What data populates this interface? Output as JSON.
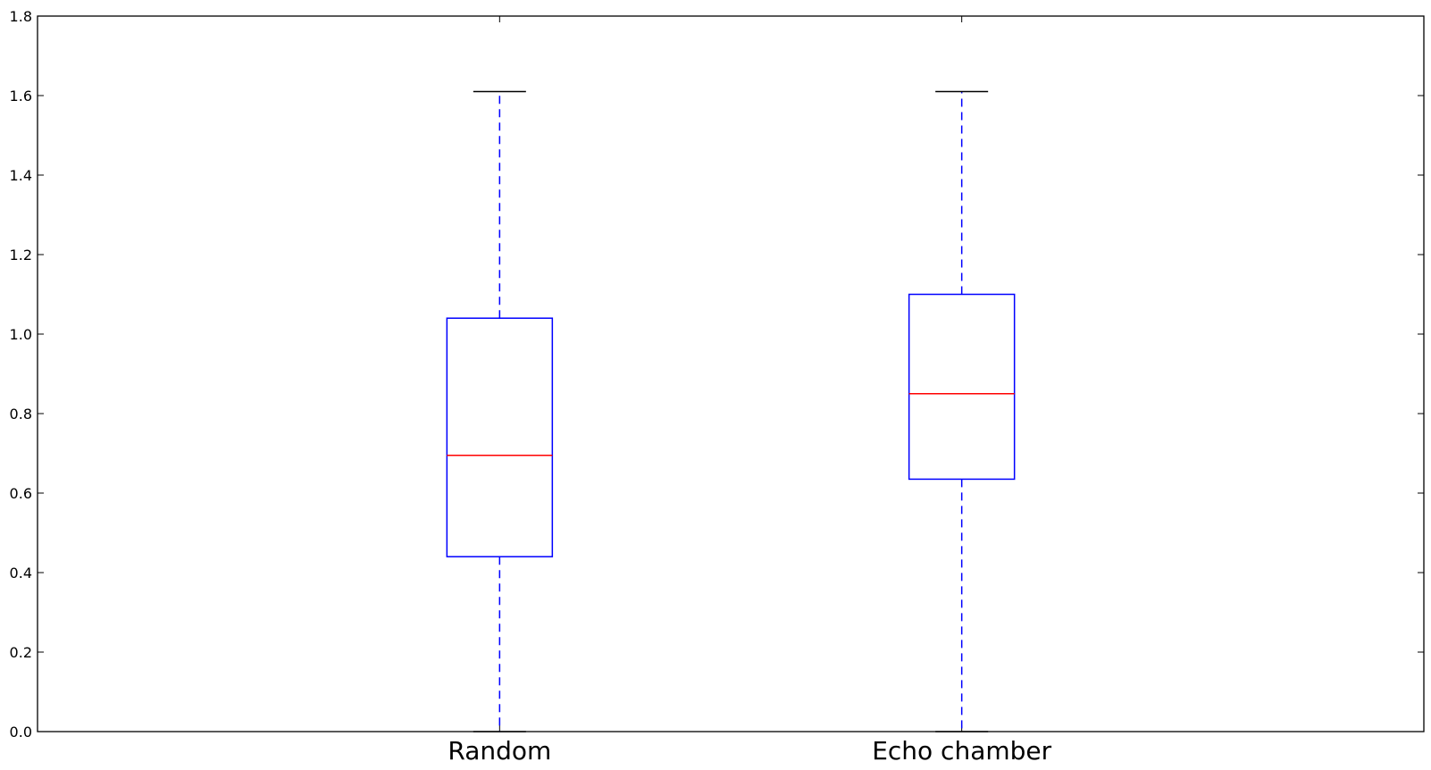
{
  "chart_data": {
    "type": "box",
    "categories": [
      "Random",
      "Echo chamber"
    ],
    "boxes": [
      {
        "category": "Random",
        "whisker_low": 0.0,
        "q1": 0.44,
        "median": 0.695,
        "q3": 1.04,
        "whisker_high": 1.61
      },
      {
        "category": "Echo chamber",
        "whisker_low": 0.0,
        "q1": 0.635,
        "median": 0.85,
        "q3": 1.1,
        "whisker_high": 1.61
      }
    ],
    "ylim": [
      0,
      1.8
    ],
    "yticks": [
      "0.0",
      "0.2",
      "0.4",
      "0.6",
      "0.8",
      "1.0",
      "1.2",
      "1.4",
      "1.6",
      "1.8"
    ],
    "title": "",
    "xlabel": "",
    "ylabel": "",
    "grid": false,
    "colors": {
      "box": "#0000ff",
      "median": "#ff0000",
      "whisker_cap": "#000000",
      "axes": "#000000"
    }
  }
}
